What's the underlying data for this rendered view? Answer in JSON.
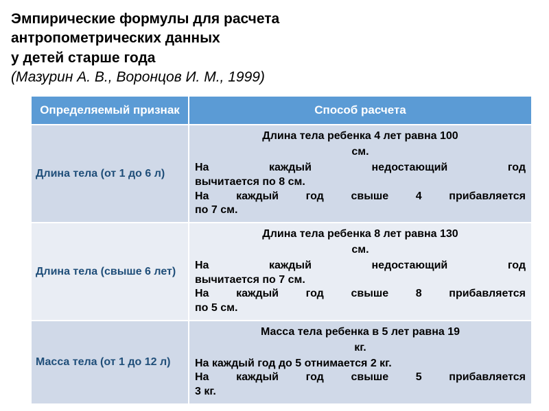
{
  "title": {
    "line1": "Эмпирические формулы для расчета",
    "line2": "антропометрических данных",
    "line3": "у детей старше года",
    "author": "(Мазурин А. В., Воронцов И. М., 1999)"
  },
  "table": {
    "header_bg": "#5b9bd5",
    "header_fg": "#ffffff",
    "band_a_bg": "#d0d9e8",
    "band_b_bg": "#e9edf4",
    "label_color": "#1f4e79",
    "text_color": "#000000",
    "columns": {
      "c1": "Определяемый признак",
      "c2": "Способ расчета"
    },
    "rows": [
      {
        "label": "Длина тела (от 1 до 6 л)",
        "m1a": "Длина тела ребенка 4 лет равна 100",
        "m1b": "см.",
        "m2a": "На каждый недостающий год",
        "m2b": "вычитается по 8 см.",
        "m3a": "На каждый год свыше 4 прибавляется",
        "m3b": "по 7 см."
      },
      {
        "label": "Длина тела (свыше 6 лет)",
        "m1a": "Длина тела ребенка 8 лет равна 130",
        "m1b": "см.",
        "m2a": "На каждый недостающий год",
        "m2b": "вычитается по 7 см.",
        "m3a": "На каждый год свыше 8 прибавляется",
        "m3b": "по 5 см."
      },
      {
        "label": "Масса тела (от 1 до 12 л)",
        "m1a": "Масса тела ребенка в 5 лет равна 19",
        "m1b": "кг.",
        "m2a": "На каждый год до 5 отнимается 2 кг.",
        "m2b": "",
        "m3a": "На каждый год свыше 5 прибавляется",
        "m3b": "3 кг."
      }
    ]
  }
}
